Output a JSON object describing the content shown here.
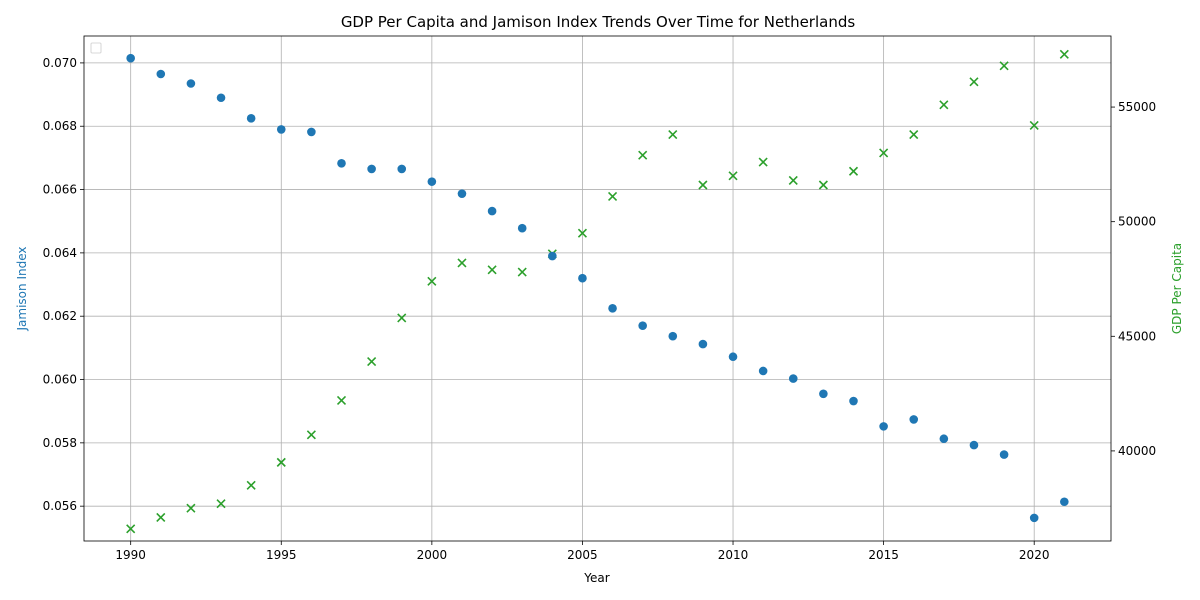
{
  "chart_data": {
    "type": "scatter",
    "title": "GDP Per Capita and Jamison Index Trends Over Time for Netherlands",
    "xlabel": "Year",
    "ylabel_left": "Jamison Index",
    "ylabel_right": "GDP Per Capita",
    "xlim": [
      1988.45,
      2022.55
    ],
    "ylim_left": [
      0.0549,
      0.07085
    ],
    "ylim_right": [
      36070,
      58100
    ],
    "x_ticks": [
      1990,
      1995,
      2000,
      2005,
      2010,
      2015,
      2020
    ],
    "y_ticks_left": [
      0.056,
      0.058,
      0.06,
      0.062,
      0.064,
      0.066,
      0.068,
      0.07
    ],
    "y_tick_labels_left": [
      "0.056",
      "0.058",
      "0.060",
      "0.062",
      "0.064",
      "0.066",
      "0.068",
      "0.070"
    ],
    "y_ticks_right": [
      40000,
      45000,
      50000,
      55000
    ],
    "grid": true,
    "legend": "top-left (empty)",
    "colors": {
      "jamison": "#1f77b4",
      "gdp": "#2ca02c"
    },
    "years": [
      1990,
      1991,
      1992,
      1993,
      1994,
      1995,
      1996,
      1997,
      1998,
      1999,
      2000,
      2001,
      2002,
      2003,
      2004,
      2005,
      2006,
      2007,
      2008,
      2009,
      2010,
      2011,
      2012,
      2013,
      2014,
      2015,
      2016,
      2017,
      2018,
      2019,
      2020,
      2021
    ],
    "series": [
      {
        "axis": "left",
        "marker": "circle",
        "values": [
          0.07015,
          0.06965,
          0.06935,
          0.0689,
          0.06825,
          0.0679,
          0.06782,
          0.06683,
          0.06665,
          0.06665,
          0.06625,
          0.06587,
          0.06532,
          0.06478,
          0.0639,
          0.0632,
          0.06225,
          0.0617,
          0.06137,
          0.06112,
          0.06072,
          0.06027,
          0.06003,
          0.05955,
          0.05932,
          0.05852,
          0.05874,
          0.05813,
          0.05793,
          0.05763,
          0.05563,
          0.05614
        ]
      },
      {
        "axis": "right",
        "marker": "x",
        "values": [
          36600,
          37100,
          37500,
          37700,
          38500,
          39500,
          40700,
          42200,
          43900,
          45800,
          47400,
          48200,
          47900,
          47800,
          48600,
          49500,
          51100,
          52900,
          53800,
          51600,
          52000,
          52600,
          51800,
          51600,
          52200,
          53000,
          53800,
          55100,
          56100,
          56800,
          54200,
          57300
        ]
      }
    ]
  }
}
